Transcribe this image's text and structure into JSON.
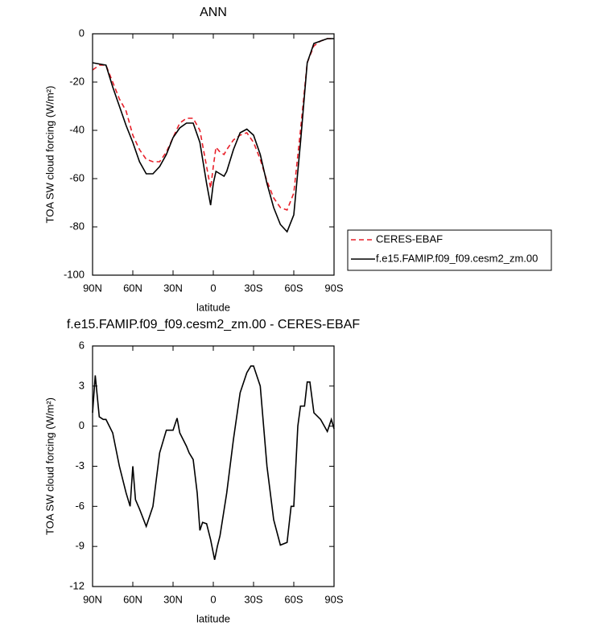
{
  "chart_data": [
    {
      "type": "line",
      "title": "ANN",
      "xlabel": "latitude",
      "ylabel": "TOA SW cloud forcing (W/m²)",
      "x": [
        90,
        85,
        80,
        75,
        70,
        65,
        60,
        55,
        50,
        45,
        40,
        35,
        30,
        25,
        20,
        15,
        10,
        5,
        2,
        0,
        -2,
        -5,
        -8,
        -10,
        -15,
        -20,
        -25,
        -30,
        -35,
        -40,
        -45,
        -50,
        -55,
        -60,
        -65,
        -70,
        -75,
        -80,
        -85,
        -90
      ],
      "series": [
        {
          "name": "CERES-EBAF",
          "color": "#e8202a",
          "line_style": "dashed",
          "values": [
            -15,
            -13,
            -13,
            -20,
            -27,
            -32,
            -42,
            -48,
            -52,
            -53,
            -53,
            -49,
            -43,
            -37,
            -35,
            -35,
            -40,
            -55,
            -64,
            -55,
            -47,
            -49,
            -50,
            -48,
            -44,
            -42,
            -41,
            -45,
            -52,
            -61,
            -68,
            -72,
            -73,
            -66,
            -40,
            -12,
            -5,
            -3,
            -2,
            -2
          ]
        },
        {
          "name": "f.e15.FAMIP.f09_f09.cesm2_zm.00",
          "color": "#000000",
          "line_style": "solid",
          "values": [
            -12,
            -12.5,
            -13,
            -22,
            -30,
            -38,
            -45,
            -53,
            -58,
            -58,
            -55,
            -50,
            -43,
            -39,
            -37,
            -37,
            -45,
            -62,
            -71,
            -62,
            -57,
            -58,
            -59,
            -57,
            -48,
            -41,
            -39.5,
            -42,
            -50,
            -62,
            -72,
            -79,
            -82,
            -75,
            -45,
            -12,
            -4,
            -3,
            -2,
            -2
          ]
        }
      ],
      "xlim": [
        90,
        -90
      ],
      "xticks": [
        {
          "value": 90,
          "label": "90N"
        },
        {
          "value": 60,
          "label": "60N"
        },
        {
          "value": 30,
          "label": "30N"
        },
        0,
        {
          "value": -30,
          "label": "30S"
        },
        {
          "value": -60,
          "label": "60S"
        },
        {
          "value": -90,
          "label": "90S"
        }
      ],
      "ylim": [
        -100,
        0
      ],
      "yticks": [
        0,
        -20,
        -40,
        -60,
        -80,
        -100
      ],
      "legend": "right"
    },
    {
      "type": "line",
      "title": "f.e15.FAMIP.f09_f09.cesm2_zm.00 - CERES-EBAF",
      "xlabel": "latitude",
      "ylabel": "TOA SW cloud forcing (W/m²)",
      "x": [
        90,
        88,
        85,
        82,
        80,
        75,
        70,
        65,
        62,
        60,
        58,
        55,
        50,
        45,
        40,
        35,
        30,
        27,
        25,
        20,
        18,
        15,
        12,
        10,
        8,
        5,
        2,
        0,
        -1,
        -3,
        -5,
        -10,
        -15,
        -20,
        -25,
        -28,
        -30,
        -35,
        -40,
        -45,
        -50,
        -55,
        -58,
        -60,
        -63,
        -65,
        -68,
        -70,
        -72,
        -75,
        -80,
        -85,
        -88,
        -90
      ],
      "values": [
        1,
        3.8,
        0.7,
        0.5,
        0.5,
        -0.5,
        -3,
        -5,
        -6,
        -3,
        -5.5,
        -6.2,
        -7.5,
        -6,
        -2,
        -0.3,
        -0.3,
        0.6,
        -0.5,
        -1.5,
        -2,
        -2.5,
        -5,
        -7.8,
        -7.2,
        -7.3,
        -8.5,
        -9.5,
        -10,
        -9,
        -8.2,
        -5,
        -1,
        2.5,
        4,
        4.5,
        4.5,
        3,
        -3,
        -7,
        -8.9,
        -8.7,
        -6,
        -6,
        0,
        1.5,
        1.5,
        3.3,
        3.3,
        1,
        0.5,
        -0.4,
        0.5,
        -0.2
      ],
      "color": "#000000",
      "xlim": [
        90,
        -90
      ],
      "xticks": [
        {
          "value": 90,
          "label": "90N"
        },
        {
          "value": 60,
          "label": "60N"
        },
        {
          "value": 30,
          "label": "30N"
        },
        0,
        {
          "value": -30,
          "label": "30S"
        },
        {
          "value": -60,
          "label": "60S"
        },
        {
          "value": -90,
          "label": "90S"
        }
      ],
      "ylim": [
        -12,
        6
      ],
      "yticks": [
        6,
        3,
        0,
        -3,
        -6,
        -9,
        -12
      ]
    }
  ]
}
